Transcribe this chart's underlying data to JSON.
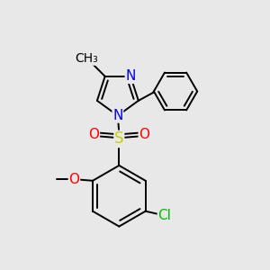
{
  "bg_color": "#e8e8e8",
  "bond_color": "#000000",
  "atom_colors": {
    "N": "#0000ee",
    "O": "#ff0000",
    "S": "#cccc00",
    "Cl": "#00bb00",
    "C": "#000000"
  },
  "line_width": 1.4,
  "font_size": 11
}
